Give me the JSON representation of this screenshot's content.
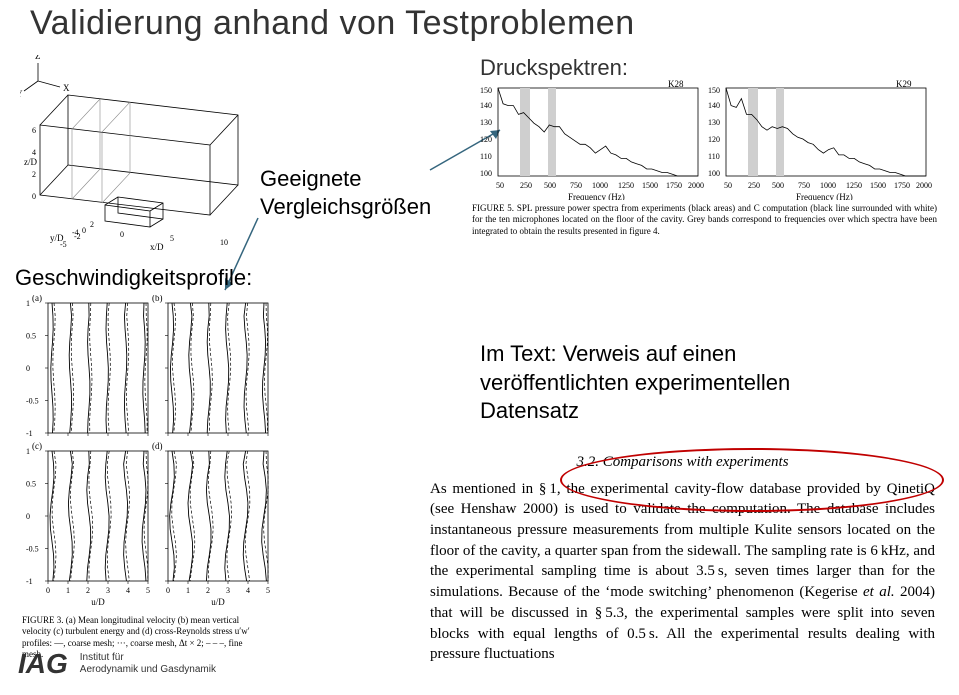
{
  "title": "Validierung anhand von Testproblemen",
  "labels": {
    "druckspektren": "Druckspektren:",
    "geeignete": "Geeignete",
    "vergleich": "Vergleichsgrößen",
    "profiles": "Geschwindigkeitsprofile:",
    "hint_line1": "Im Text: Verweis auf einen",
    "hint_line2": "veröffentlichten experimentellen",
    "hint_line3": "Datensatz"
  },
  "iag": {
    "logo": "IAG",
    "line1": "Institut für",
    "line2": "Aerodynamik und Gasdynamik"
  },
  "geometry": {
    "axis_labels": {
      "x": "X",
      "y": "Y",
      "z": "Z",
      "xd": "x/D",
      "yd": "y/D",
      "zd": "z/D"
    },
    "x_ticks": [
      -4,
      0,
      5,
      10
    ],
    "y_ticks": [
      -5,
      -2,
      0,
      2
    ],
    "z_ticks": [
      0,
      2,
      4,
      6
    ]
  },
  "spectra": {
    "left_label": "K28",
    "right_label": "K29",
    "y_ticks": [
      100,
      110,
      120,
      130,
      140,
      150
    ],
    "x_ticks": [
      50,
      250,
      500,
      750,
      1000,
      1250,
      1500,
      1750,
      2000
    ],
    "xlabel": "Frequency (Hz)",
    "left_line": [
      150,
      141,
      140,
      140,
      135,
      136,
      133,
      130,
      128,
      125,
      129,
      128,
      128,
      124,
      122,
      120,
      118,
      118,
      116,
      113,
      115,
      117,
      113,
      112,
      110,
      110,
      108,
      107,
      106,
      104,
      104,
      103,
      102,
      102,
      101,
      100,
      100,
      100,
      100,
      100
    ],
    "right_line": [
      150,
      140,
      139,
      144,
      135,
      135,
      132,
      128,
      126,
      128,
      127,
      128,
      127,
      124,
      122,
      121,
      119,
      118,
      115,
      113,
      115,
      116,
      112,
      112,
      110,
      110,
      108,
      107,
      106,
      104,
      104,
      103,
      102,
      102,
      101,
      100,
      100,
      100,
      100,
      100
    ],
    "caption": "FIGURE 5. SPL pressure power spectra from experiments (black areas) and C computation (black line surrounded with white) for the ten microphones located on the floor of the cavity. Grey bands correspond to frequencies over which spectra have been integrated to obtain the results presented in figure 4."
  },
  "profiles": {
    "panels": [
      "(a)",
      "(b)",
      "(c)",
      "(d)"
    ],
    "y_ticks": [
      -1.0,
      -0.5,
      0,
      0.5,
      1.0
    ],
    "x_ticks": [
      0,
      1,
      2,
      3,
      4,
      5
    ],
    "xlabel": "u/D",
    "ylabel": "z/D",
    "caption": "FIGURE 3. (a) Mean longitudinal velocity (b) mean vertical velocity (c) turbulent energy and (d) cross-Reynolds stress u′w′ profiles: —, coarse mesh; ···, coarse mesh, Δt × 2; – – –, fine mesh."
  },
  "paragraph": {
    "section_head": "3.2. Comparisons with experiments",
    "body1": "As mentioned in § 1, the experimental cavity-flow database provided by QinetiQ (see Henshaw 2000) is used to validate the computation. The database includes instantaneous pressure measurements from multiple Kulite sensors located on the floor of the cavity, a quarter span from the sidewall. The sampling rate is 6 kHz, and the experimental sampling time is about 3.5 s, seven times larger than for the simulations. Because of the ‘mode switching’ phenomenon (Kegerise ",
    "body_italic": "et al.",
    "body2": " 2004) that will be discussed in § 5.3, the experimental samples were split into seven blocks with equal lengths of 0.5 s. All the experimental results dealing with pressure fluctuations"
  },
  "arrows": {
    "color": "#35667e"
  },
  "ellipse": {
    "color": "#c00000"
  }
}
